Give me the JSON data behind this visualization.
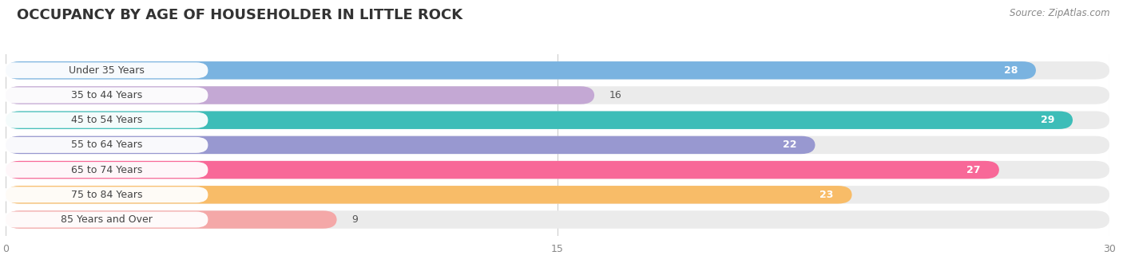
{
  "title": "OCCUPANCY BY AGE OF HOUSEHOLDER IN LITTLE ROCK",
  "source": "Source: ZipAtlas.com",
  "categories": [
    "Under 35 Years",
    "35 to 44 Years",
    "45 to 54 Years",
    "55 to 64 Years",
    "65 to 74 Years",
    "75 to 84 Years",
    "85 Years and Over"
  ],
  "values": [
    28,
    16,
    29,
    22,
    27,
    23,
    9
  ],
  "bar_colors": [
    "#7ab3e0",
    "#c4a8d4",
    "#3dbdb8",
    "#9898d0",
    "#f86898",
    "#f8bc68",
    "#f4a8a8"
  ],
  "bar_bg_colors": [
    "#ebebeb",
    "#ebebeb",
    "#ebebeb",
    "#ebebeb",
    "#ebebeb",
    "#ebebeb",
    "#ebebeb"
  ],
  "xlim": [
    0,
    30
  ],
  "xticks": [
    0,
    15,
    30
  ],
  "background_color": "#ffffff",
  "bar_height": 0.72,
  "title_fontsize": 13,
  "label_fontsize": 9,
  "value_fontsize": 9
}
